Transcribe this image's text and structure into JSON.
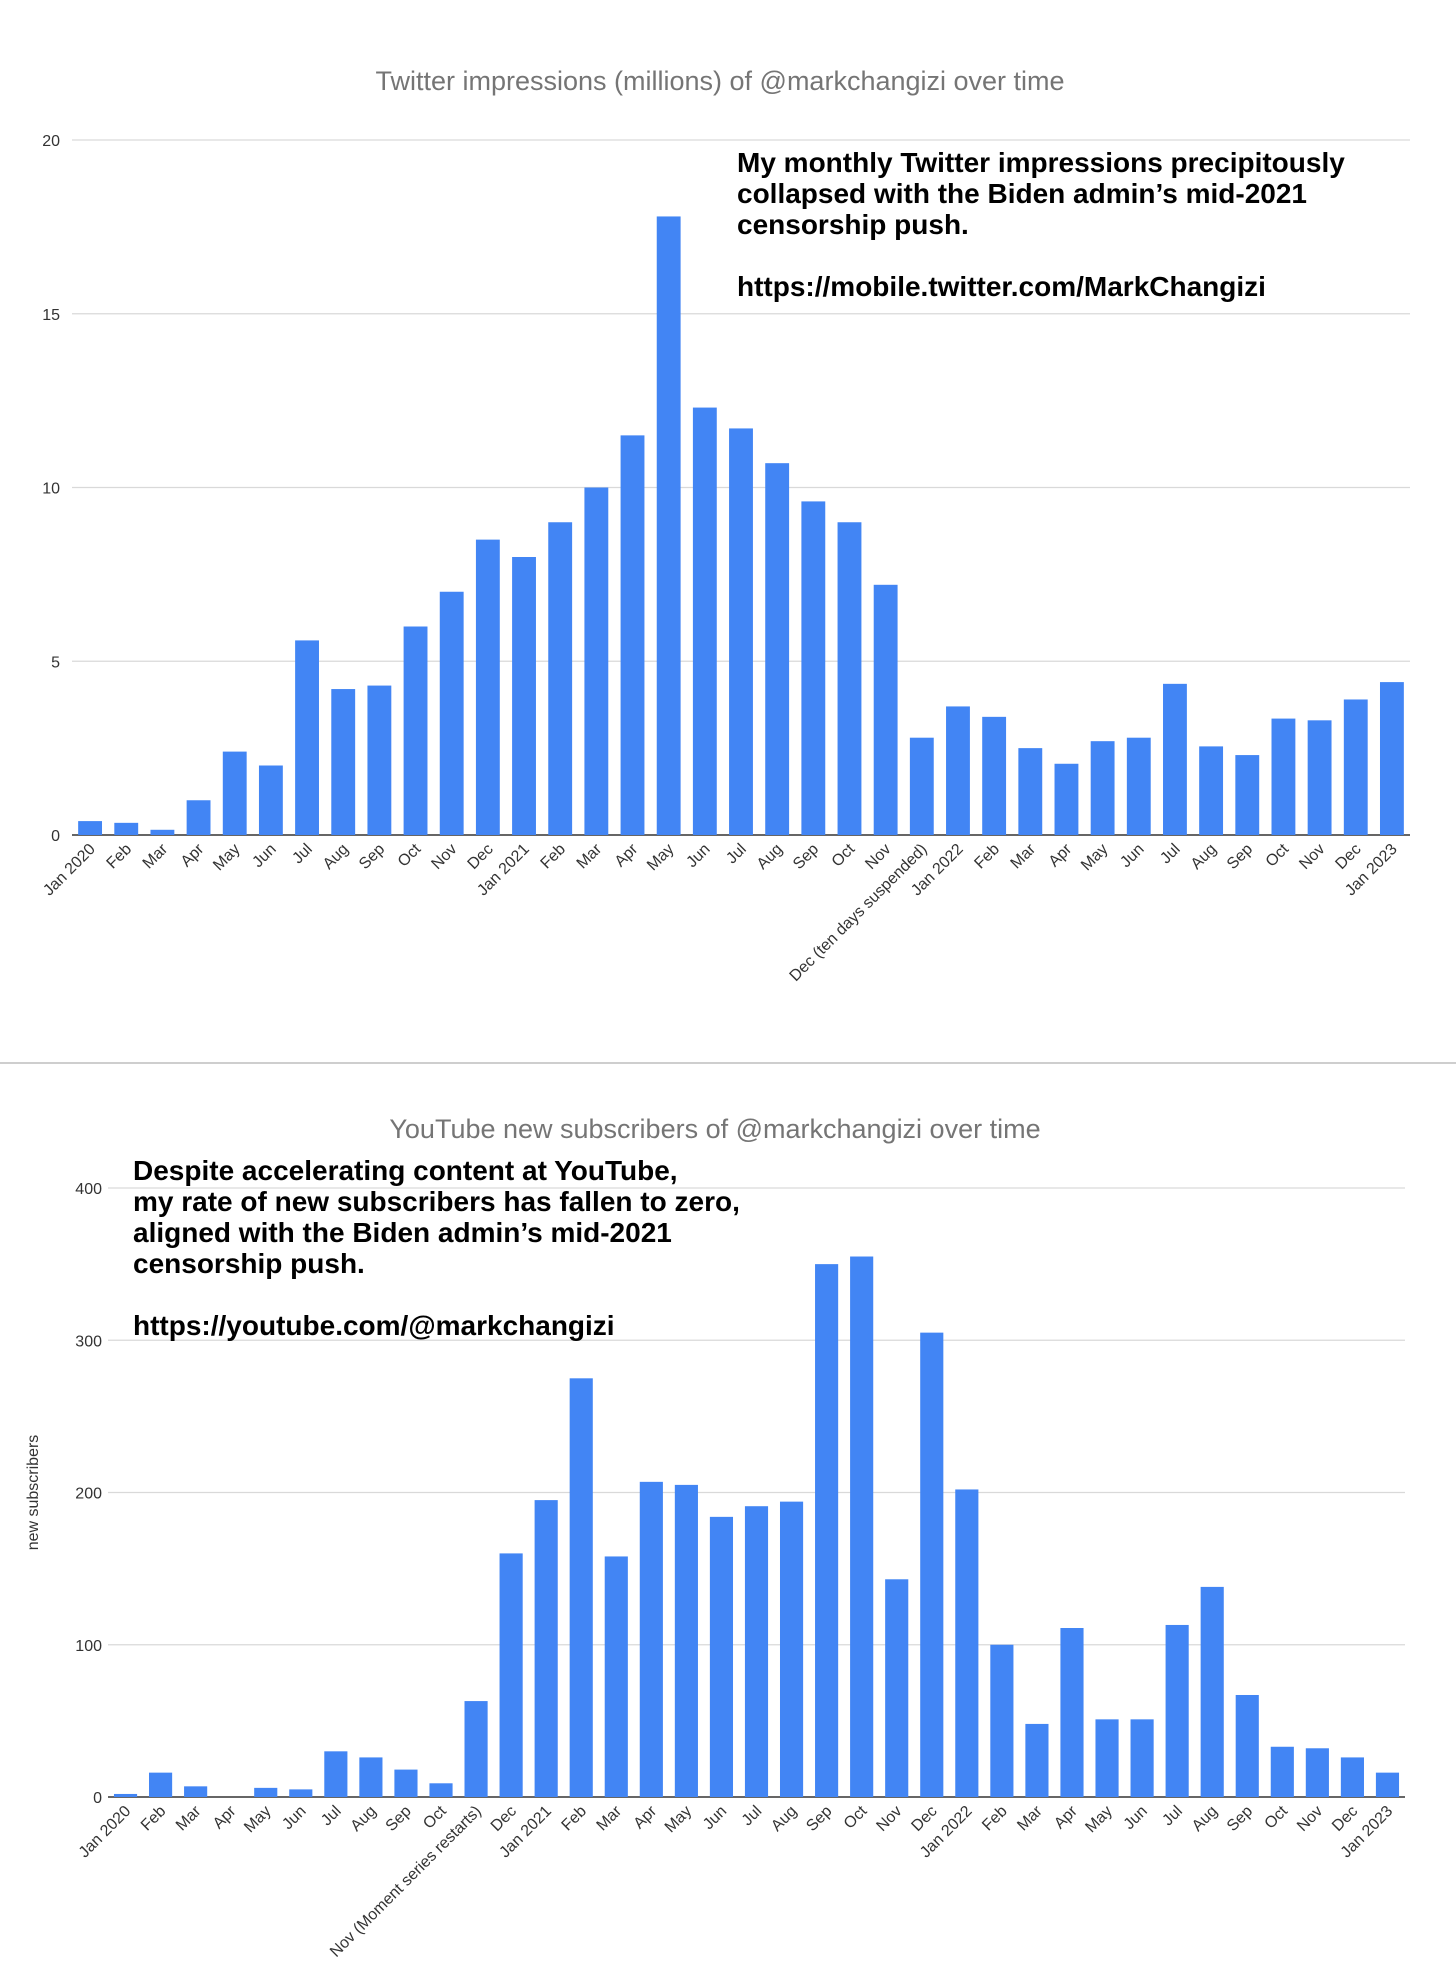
{
  "chart_data": [
    {
      "type": "bar",
      "title": "Twitter impressions (millions) of @markchangizi over time",
      "ylabel": "",
      "ylim": [
        0,
        20
      ],
      "yticks": [
        0,
        5,
        10,
        15,
        20
      ],
      "grid": true,
      "color": "#4285f4",
      "annotation": [
        "My monthly Twitter impressions precipitously",
        "collapsed with the Biden admin’s mid-2021",
        "censorship push.",
        "",
        "https://mobile.twitter.com/MarkChangizi"
      ],
      "categories": [
        "Jan 2020",
        "Feb",
        "Mar",
        "Apr",
        "May",
        "Jun",
        "Jul",
        "Aug",
        "Sep",
        "Oct",
        "Nov",
        "Dec",
        "Jan 2021",
        "Feb",
        "Mar",
        "Apr",
        "May",
        "Jun",
        "Jul",
        "Aug",
        "Sep",
        "Oct",
        "Nov",
        "Dec (ten days suspended)",
        "Jan 2022",
        "Feb",
        "Mar",
        "Apr",
        "May",
        "Jun",
        "Jul",
        "Aug",
        "Sep",
        "Oct",
        "Nov",
        "Dec",
        "Jan 2023"
      ],
      "values": [
        0.4,
        0.35,
        0.15,
        1.0,
        2.4,
        2.0,
        5.6,
        4.2,
        4.3,
        6.0,
        7.0,
        8.5,
        8.0,
        9.0,
        10.0,
        11.5,
        17.8,
        12.3,
        11.7,
        10.7,
        9.6,
        9.0,
        7.2,
        2.8,
        3.7,
        3.4,
        2.5,
        2.05,
        2.7,
        2.8,
        4.35,
        2.55,
        2.3,
        3.35,
        3.3,
        3.9,
        4.4
      ]
    },
    {
      "type": "bar",
      "title": "YouTube new subscribers of @markchangizi over time",
      "ylabel": "new subscribers",
      "ylim": [
        0,
        400
      ],
      "yticks": [
        0,
        100,
        200,
        300,
        400
      ],
      "grid": true,
      "color": "#4285f4",
      "annotation": [
        "Despite accelerating content at YouTube,",
        "my rate of new subscribers has fallen to zero,",
        "aligned with the Biden admin’s mid-2021",
        "censorship push.",
        "",
        "https://youtube.com/@markchangizi"
      ],
      "categories": [
        "Jan 2020",
        "Feb",
        "Mar",
        "Apr",
        "May",
        "Jun",
        "Jul",
        "Aug",
        "Sep",
        "Oct",
        "Nov (Moment series restarts)",
        "Dec",
        "Jan 2021",
        "Feb",
        "Mar",
        "Apr",
        "May",
        "Jun",
        "Jul",
        "Aug",
        "Sep",
        "Oct",
        "Nov",
        "Dec",
        "Jan 2022",
        "Feb",
        "Mar",
        "Apr",
        "May",
        "Jun",
        "Jul",
        "Aug",
        "Sep",
        "Oct",
        "Nov",
        "Dec",
        "Jan 2023"
      ],
      "values": [
        2,
        16,
        7,
        0,
        6,
        5,
        30,
        26,
        18,
        9,
        63,
        160,
        195,
        275,
        158,
        207,
        205,
        184,
        191,
        194,
        350,
        355,
        143,
        305,
        202,
        100,
        48,
        111,
        51,
        51,
        113,
        138,
        67,
        33,
        32,
        26,
        16
      ]
    }
  ]
}
